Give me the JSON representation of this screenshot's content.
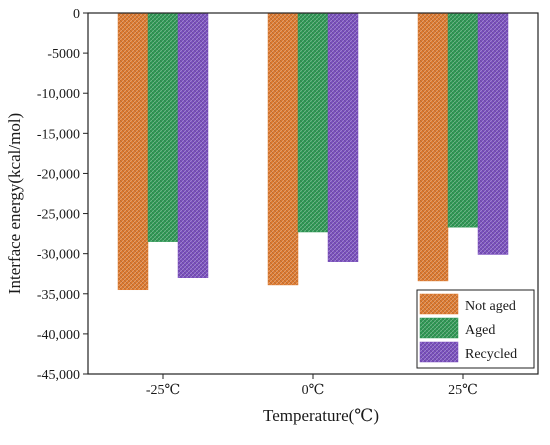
{
  "chart_data": {
    "type": "bar",
    "title": "",
    "xlabel": "Temperature(℃)",
    "ylabel": "Interface energy(kcal/mol)",
    "categories": [
      "-25℃",
      "0℃",
      "25℃"
    ],
    "series": [
      {
        "name": "Not aged",
        "values": [
          -34500,
          -33900,
          -33400
        ]
      },
      {
        "name": "Aged",
        "values": [
          -28500,
          -27300,
          -26700
        ]
      },
      {
        "name": "Recycled",
        "values": [
          -33000,
          -31000,
          -30100
        ]
      }
    ],
    "ylim": [
      -45000,
      0
    ],
    "yticks": [
      0,
      -5000,
      -10000,
      -15000,
      -20000,
      -25000,
      -30000,
      -35000,
      -40000,
      -45000
    ],
    "ytick_labels": [
      "0",
      "-5000",
      "-10,000",
      "-15,000",
      "-20,000",
      "-25,000",
      "-30,000",
      "-35,000",
      "-40,000",
      "-45,000"
    ],
    "legend": "bottom-right",
    "grid": false,
    "colors": [
      "#e07a2e",
      "#2e9a55",
      "#7a4fc0"
    ],
    "bar_pattern": "crosshatch"
  }
}
